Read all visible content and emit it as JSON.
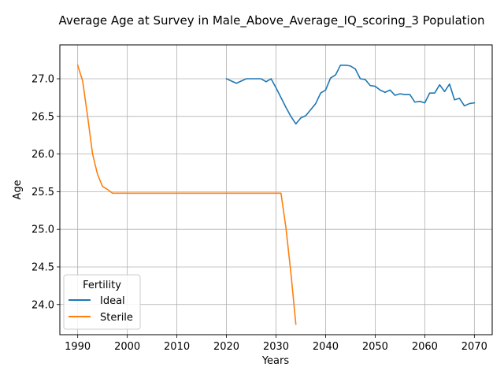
{
  "chart_data": {
    "type": "line",
    "title": "Average Age at Survey in Male_Above_Average_IQ_scoring_3 Population",
    "xlabel": "Years",
    "ylabel": "Age",
    "xlim": [
      1986.4,
      2073.6
    ],
    "ylim": [
      23.6,
      27.45
    ],
    "xticks": [
      1990,
      2000,
      2010,
      2020,
      2030,
      2040,
      2050,
      2060,
      2070
    ],
    "xtick_labels": [
      "1990",
      "2000",
      "2010",
      "2020",
      "2030",
      "2040",
      "2050",
      "2060",
      "2070"
    ],
    "yticks": [
      24.0,
      24.5,
      25.0,
      25.5,
      26.0,
      26.5,
      27.0
    ],
    "ytick_labels": [
      "24.0",
      "24.5",
      "25.0",
      "25.5",
      "26.0",
      "26.5",
      "27.0"
    ],
    "grid": true,
    "legend": {
      "title": "Fertility",
      "placement": "lower-left"
    },
    "series": [
      {
        "name": "Ideal",
        "color": "#1f77b4",
        "x": [
          2020,
          2021,
          2022,
          2023,
          2024,
          2025,
          2026,
          2027,
          2028,
          2029,
          2030,
          2031,
          2032,
          2033,
          2034,
          2035,
          2036,
          2037,
          2038,
          2039,
          2040,
          2041,
          2042,
          2043,
          2044,
          2045,
          2046,
          2047,
          2048,
          2049,
          2050,
          2051,
          2052,
          2053,
          2054,
          2055,
          2056,
          2057,
          2058,
          2059,
          2060,
          2061,
          2062,
          2063,
          2064,
          2065,
          2066,
          2067,
          2068,
          2069,
          2070
        ],
        "y": [
          27.0,
          26.97,
          26.94,
          26.97,
          27.0,
          27.0,
          27.0,
          27.0,
          26.96,
          27.0,
          26.88,
          26.75,
          26.62,
          26.5,
          26.4,
          26.48,
          26.51,
          26.59,
          26.67,
          26.81,
          26.85,
          27.01,
          27.05,
          27.18,
          27.18,
          27.17,
          27.13,
          27.0,
          26.99,
          26.91,
          26.9,
          26.85,
          26.82,
          26.85,
          26.78,
          26.8,
          26.79,
          26.79,
          26.69,
          26.7,
          26.68,
          26.81,
          26.81,
          26.92,
          26.83,
          26.93,
          26.72,
          26.74,
          26.64,
          26.67,
          26.68
        ]
      },
      {
        "name": "Sterile",
        "color": "#ff7f0e",
        "x": [
          1990,
          1991,
          1992,
          1993,
          1994,
          1995,
          1996,
          1997,
          1998,
          2000,
          2005,
          2010,
          2015,
          2020,
          2025,
          2030,
          2031,
          2032,
          2033,
          2034
        ],
        "y": [
          27.18,
          26.97,
          26.5,
          26.0,
          25.73,
          25.57,
          25.53,
          25.48,
          25.48,
          25.48,
          25.48,
          25.48,
          25.48,
          25.48,
          25.48,
          25.48,
          25.48,
          25.02,
          24.42,
          23.74
        ]
      }
    ]
  }
}
